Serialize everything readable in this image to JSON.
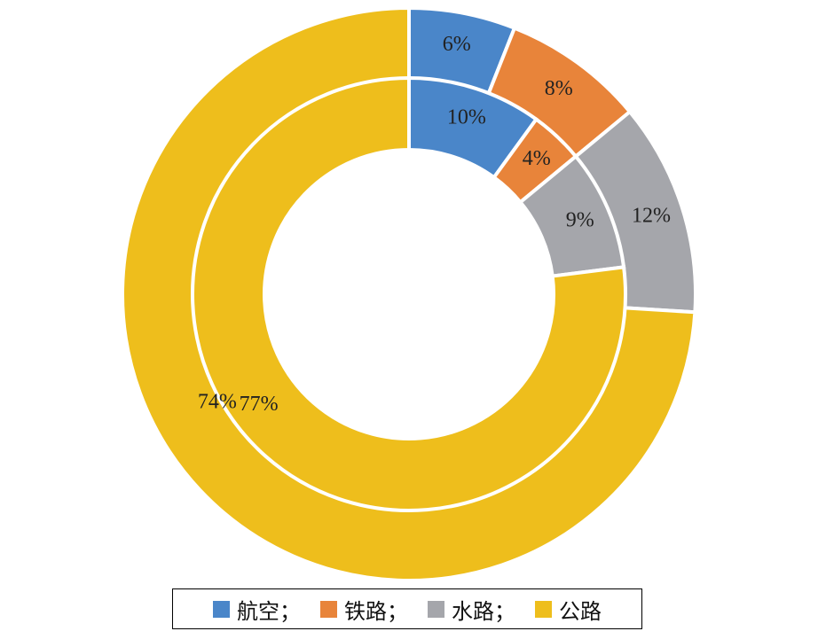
{
  "chart_data": {
    "type": "pie",
    "subtype": "nested-donut",
    "categories": [
      "航空；",
      "铁路；",
      "水路；",
      "公路"
    ],
    "colors": [
      "#4a86c9",
      "#e8843a",
      "#a5a6ab",
      "#eebe1c"
    ],
    "series": [
      {
        "ring": "outer",
        "values": [
          6,
          8,
          12,
          74
        ],
        "labels": [
          "6%",
          "8%",
          "12%",
          "74%"
        ]
      },
      {
        "ring": "inner",
        "values": [
          10,
          4,
          9,
          77
        ],
        "labels": [
          "10%",
          "4%",
          "9%",
          "77%"
        ]
      }
    ],
    "legend_position": "bottom"
  }
}
